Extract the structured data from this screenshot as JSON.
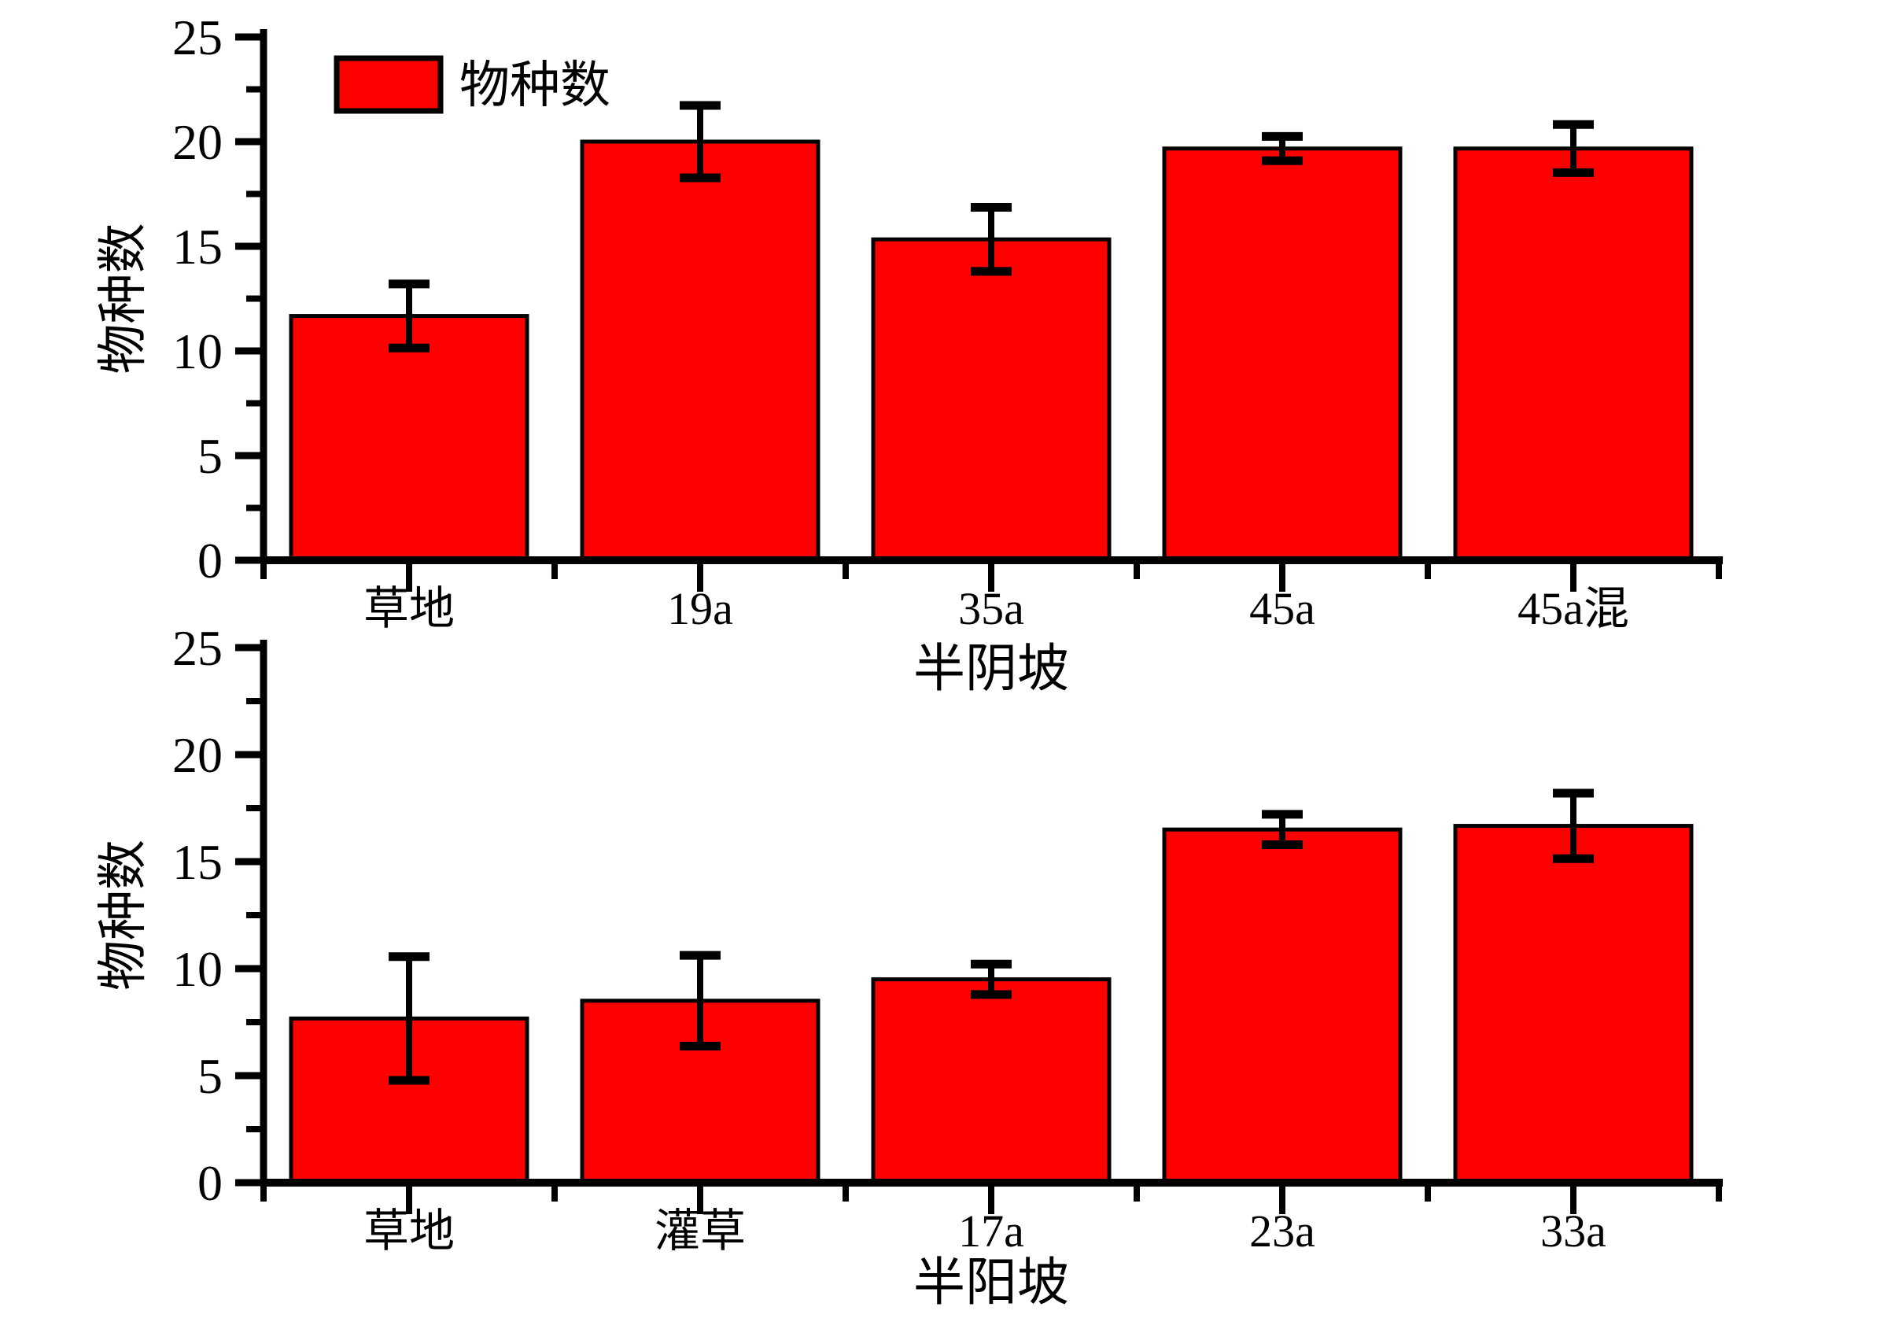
{
  "figure": {
    "background_color": "#ffffff",
    "bar_fill_color": "#ff0000",
    "bar_border_color": "#000000",
    "axis_color": "#000000",
    "error_bar_color": "#000000"
  },
  "legend": {
    "label": "物种数",
    "swatch_color": "#ff0000",
    "position": "top-left-inside-first-chart"
  },
  "chart_data": [
    {
      "type": "bar",
      "panel": "top",
      "title": "",
      "xlabel": "半阴坡",
      "ylabel": "物种数",
      "ylim": [
        0,
        25
      ],
      "ytick_interval": 5,
      "yminor_interval": 2.5,
      "ytick_labels": [
        "0",
        "5",
        "10",
        "15",
        "20",
        "25"
      ],
      "grid": false,
      "legend_visible": true,
      "legend_label": "物种数",
      "categories": [
        "草地",
        "19a",
        "35a",
        "45a",
        "45a混"
      ],
      "values": [
        11.67,
        20.0,
        15.33,
        19.67,
        19.67
      ],
      "errors": [
        1.53,
        1.73,
        1.53,
        0.58,
        1.15
      ]
    },
    {
      "type": "bar",
      "panel": "bottom",
      "title": "",
      "xlabel": "半阳坡",
      "ylabel": "物种数",
      "ylim": [
        0,
        25
      ],
      "ytick_interval": 5,
      "yminor_interval": 2.5,
      "ytick_labels": [
        "0",
        "5",
        "10",
        "15",
        "20",
        "25"
      ],
      "grid": false,
      "legend_visible": false,
      "legend_label": "",
      "categories": [
        "草地",
        "灌草",
        "17a",
        "23a",
        "33a"
      ],
      "values": [
        7.67,
        8.5,
        9.5,
        16.5,
        16.67
      ],
      "errors": [
        2.89,
        2.12,
        0.71,
        0.71,
        1.53
      ]
    }
  ]
}
